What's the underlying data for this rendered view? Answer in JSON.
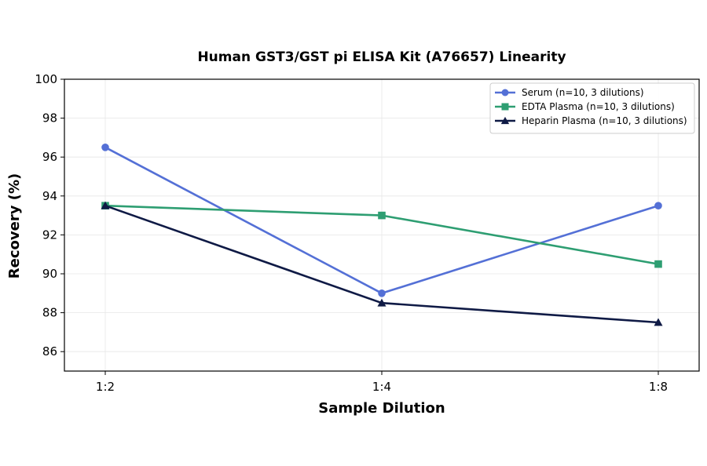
{
  "chart_data": {
    "type": "line",
    "title": "Human GST3/GST pi ELISA Kit (A76657) Linearity",
    "xlabel": "Sample Dilution",
    "ylabel": "Recovery (%)",
    "categories": [
      "1:2",
      "1:4",
      "1:8"
    ],
    "ylim": [
      85,
      100
    ],
    "yticks": [
      86,
      88,
      90,
      92,
      94,
      96,
      98,
      100
    ],
    "grid": true,
    "legend_position": "top-right",
    "series": [
      {
        "name": "Serum (n=10, 3 dilutions)",
        "values": [
          96.5,
          89.0,
          93.5
        ],
        "color": "#5470d6",
        "marker": "circle"
      },
      {
        "name": "EDTA Plasma (n=10, 3 dilutions)",
        "values": [
          93.5,
          93.0,
          90.5
        ],
        "color": "#2e9e72",
        "marker": "square"
      },
      {
        "name": "Heparin Plasma (n=10, 3 dilutions)",
        "values": [
          93.5,
          88.5,
          87.5
        ],
        "color": "#0f1a45",
        "marker": "triangle"
      }
    ]
  }
}
